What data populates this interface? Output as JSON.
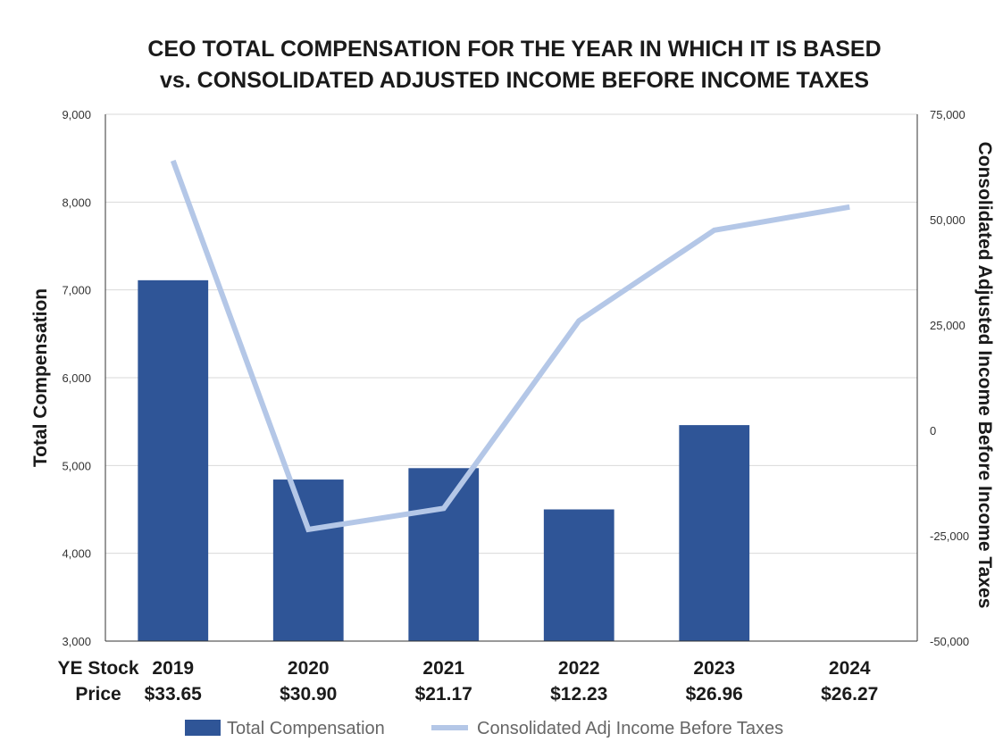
{
  "chart_data": {
    "type": "bar",
    "title_lines": [
      "CEO TOTAL COMPENSATION FOR THE YEAR IN WHICH IT IS BASED",
      "vs. CONSOLIDATED ADJUSTED INCOME BEFORE INCOME TAXES"
    ],
    "ylabel": "Total Compensation",
    "y2label": "Consolidated Adjusted Income Before Income Taxes",
    "row_label_lines": [
      "YE Stock",
      "Price"
    ],
    "categories": [
      "2019",
      "2020",
      "2021",
      "2022",
      "2023",
      "2024"
    ],
    "stock_prices": [
      "$33.65",
      "$30.90",
      "$21.17",
      "$12.23",
      "$26.96",
      "$26.27"
    ],
    "ylim": [
      3000,
      9000
    ],
    "y_ticks": [
      "3,000",
      "4,000",
      "5,000",
      "6,000",
      "7,000",
      "8,000",
      "9,000"
    ],
    "y2lim": [
      -50000,
      75000
    ],
    "y2_ticks": [
      "-50,000",
      "-25,000",
      "0",
      "25,000",
      "50,000",
      "75,000"
    ],
    "grid": true,
    "legend_position": "bottom",
    "series": [
      {
        "name": "Total Compensation",
        "type": "bar",
        "axis": "left",
        "color": "#2f5597",
        "values": [
          7110,
          4840,
          4970,
          4500,
          5460,
          null
        ]
      },
      {
        "name": "Consolidated Adj Income Before Taxes",
        "type": "line",
        "axis": "right",
        "color": "#b4c7e7",
        "values": [
          64000,
          -23500,
          -18500,
          26000,
          47500,
          53000
        ]
      }
    ]
  }
}
